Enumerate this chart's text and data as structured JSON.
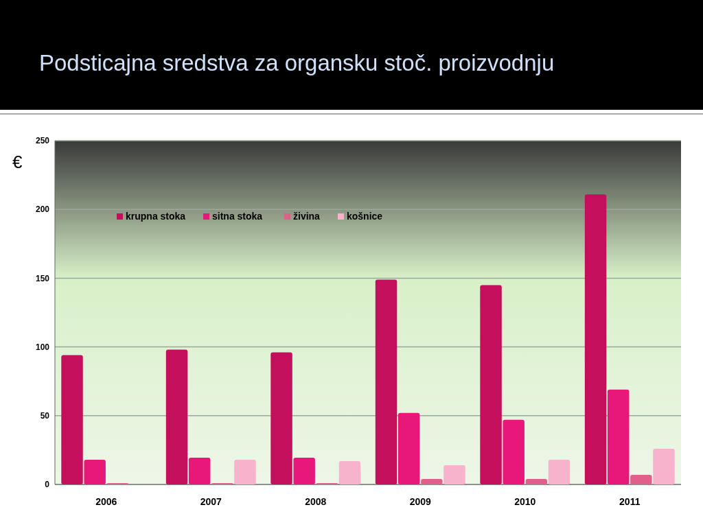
{
  "chart_data": {
    "type": "bar",
    "title": "Podsticajna sredstva za organsku stoč. proizvodnju",
    "ylabel": "€",
    "categories": [
      "2006",
      "2007",
      "2008",
      "2009",
      "2010",
      "2011"
    ],
    "series": [
      {
        "name": "krupna stoka",
        "color": "#c4105c",
        "values": [
          94,
          98,
          96,
          149,
          145,
          211
        ]
      },
      {
        "name": "sitna stoka",
        "color": "#e8177a",
        "values": [
          18,
          19.5,
          19.5,
          52,
          47,
          69
        ]
      },
      {
        "name": "živina",
        "color": "#e0608c",
        "values": [
          1,
          1,
          1,
          4,
          4,
          7
        ]
      },
      {
        "name": "košnice",
        "color": "#f6b3cb",
        "values": [
          null,
          18,
          17,
          14,
          18,
          26
        ]
      }
    ],
    "ylim": [
      0,
      250
    ],
    "yticks": [
      0,
      50,
      100,
      150,
      200,
      250
    ],
    "grid": "y",
    "legend": "top left"
  }
}
